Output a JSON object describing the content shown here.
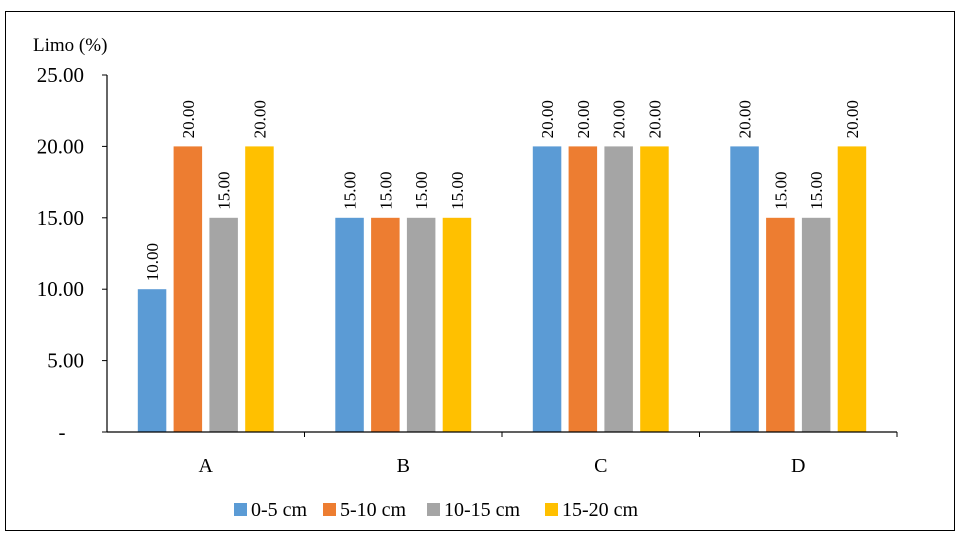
{
  "chart_data": {
    "type": "bar",
    "ylabel": "Limo (%)",
    "categories": [
      "A",
      "B",
      "C",
      "D"
    ],
    "series": [
      {
        "name": "0-5 cm",
        "color": "#5B9BD5",
        "values": [
          10,
          15,
          20,
          20
        ]
      },
      {
        "name": "5-10 cm",
        "color": "#ED7D31",
        "values": [
          20,
          15,
          20,
          15
        ]
      },
      {
        "name": "10-15 cm",
        "color": "#A5A5A5",
        "values": [
          15,
          15,
          20,
          15
        ]
      },
      {
        "name": "15-20 cm",
        "color": "#FFC000",
        "values": [
          20,
          15,
          20,
          20
        ]
      }
    ],
    "ylim": [
      0,
      25
    ],
    "yticks": [
      0,
      5,
      10,
      15,
      20,
      25
    ],
    "ytick_labels": [
      "-",
      "5.00",
      "10.00",
      "15.00",
      "20.00",
      "25.00"
    ],
    "data_label_format": "2 decimals, rotated vertical",
    "grid": false,
    "legend_position": "bottom"
  }
}
